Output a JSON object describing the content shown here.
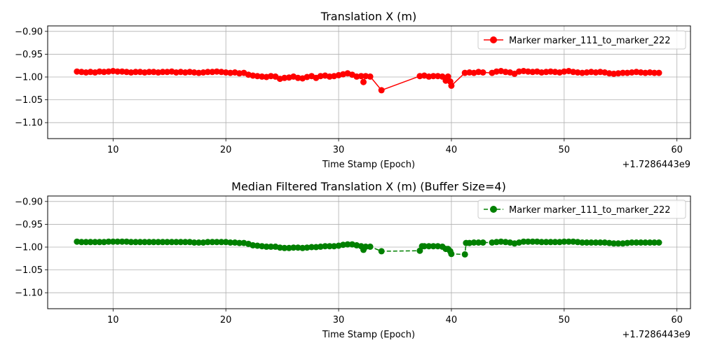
{
  "chart_data": [
    {
      "type": "line",
      "title": "Translation X (m)",
      "xlabel": "Time Stamp (Epoch)",
      "ylabel": "",
      "x_offset_label": "+1.7286443e9",
      "xlim": [
        4.2,
        61.2
      ],
      "ylim": [
        -1.135,
        -0.888
      ],
      "x_ticks": [
        10,
        20,
        30,
        40,
        50,
        60
      ],
      "x_tick_labels": [
        "10",
        "20",
        "30",
        "40",
        "50",
        "60"
      ],
      "y_ticks": [
        -0.9,
        -0.95,
        -1.0,
        -1.05,
        -1.1
      ],
      "y_tick_labels": [
        "−0.90",
        "−0.95",
        "−1.00",
        "−1.05",
        "−1.10"
      ],
      "grid": true,
      "legend_position": "top-right",
      "series": [
        {
          "name": "Marker marker_111_to_marker_222",
          "color": "#ff0000",
          "line_style": "solid",
          "marker": "circle",
          "points": [
            [
              6.8,
              -0.988
            ],
            [
              7.2,
              -0.989
            ],
            [
              7.6,
              -0.99
            ],
            [
              8.0,
              -0.989
            ],
            [
              8.4,
              -0.99
            ],
            [
              8.8,
              -0.988
            ],
            [
              9.2,
              -0.989
            ],
            [
              9.6,
              -0.988
            ],
            [
              10.0,
              -0.987
            ],
            [
              10.4,
              -0.988
            ],
            [
              10.8,
              -0.988
            ],
            [
              11.2,
              -0.989
            ],
            [
              11.6,
              -0.99
            ],
            [
              12.0,
              -0.989
            ],
            [
              12.4,
              -0.989
            ],
            [
              12.8,
              -0.99
            ],
            [
              13.2,
              -0.989
            ],
            [
              13.6,
              -0.989
            ],
            [
              14.0,
              -0.99
            ],
            [
              14.4,
              -0.989
            ],
            [
              14.8,
              -0.989
            ],
            [
              15.2,
              -0.988
            ],
            [
              15.6,
              -0.99
            ],
            [
              16.0,
              -0.989
            ],
            [
              16.4,
              -0.99
            ],
            [
              16.8,
              -0.989
            ],
            [
              17.2,
              -0.99
            ],
            [
              17.6,
              -0.991
            ],
            [
              18.0,
              -0.99
            ],
            [
              18.4,
              -0.989
            ],
            [
              18.8,
              -0.989
            ],
            [
              19.2,
              -0.988
            ],
            [
              19.6,
              -0.989
            ],
            [
              20.0,
              -0.99
            ],
            [
              20.4,
              -0.991
            ],
            [
              20.8,
              -0.99
            ],
            [
              21.2,
              -0.992
            ],
            [
              21.6,
              -0.991
            ],
            [
              22.0,
              -0.995
            ],
            [
              22.4,
              -0.997
            ],
            [
              22.8,
              -0.998
            ],
            [
              23.2,
              -0.999
            ],
            [
              23.6,
              -1.0
            ],
            [
              24.0,
              -0.998
            ],
            [
              24.4,
              -0.999
            ],
            [
              24.8,
              -1.004
            ],
            [
              25.2,
              -1.002
            ],
            [
              25.6,
              -1.001
            ],
            [
              26.0,
              -0.999
            ],
            [
              26.4,
              -1.002
            ],
            [
              26.8,
              -1.003
            ],
            [
              27.2,
              -1.0
            ],
            [
              27.6,
              -0.998
            ],
            [
              28.0,
              -1.002
            ],
            [
              28.4,
              -0.998
            ],
            [
              28.8,
              -0.997
            ],
            [
              29.2,
              -0.999
            ],
            [
              29.6,
              -0.998
            ],
            [
              30.0,
              -0.996
            ],
            [
              30.4,
              -0.994
            ],
            [
              30.8,
              -0.992
            ],
            [
              31.2,
              -0.995
            ],
            [
              31.6,
              -0.999
            ],
            [
              32.0,
              -0.998
            ],
            [
              32.2,
              -1.011
            ],
            [
              32.4,
              -0.998
            ],
            [
              32.8,
              -0.999
            ],
            [
              33.8,
              -1.029
            ],
            [
              37.2,
              -0.998
            ],
            [
              37.6,
              -0.997
            ],
            [
              38.0,
              -0.999
            ],
            [
              38.4,
              -0.998
            ],
            [
              38.8,
              -0.998
            ],
            [
              39.2,
              -0.999
            ],
            [
              39.5,
              -1.008
            ],
            [
              39.7,
              -0.999
            ],
            [
              39.9,
              -1.01
            ],
            [
              40.0,
              -1.019
            ],
            [
              41.2,
              -0.991
            ],
            [
              41.6,
              -0.99
            ],
            [
              42.0,
              -0.991
            ],
            [
              42.4,
              -0.989
            ],
            [
              42.8,
              -0.99
            ],
            [
              43.6,
              -0.991
            ],
            [
              44.0,
              -0.988
            ],
            [
              44.4,
              -0.987
            ],
            [
              44.8,
              -0.989
            ],
            [
              45.2,
              -0.99
            ],
            [
              45.6,
              -0.993
            ],
            [
              46.0,
              -0.988
            ],
            [
              46.4,
              -0.987
            ],
            [
              46.8,
              -0.988
            ],
            [
              47.2,
              -0.989
            ],
            [
              47.6,
              -0.988
            ],
            [
              48.0,
              -0.99
            ],
            [
              48.4,
              -0.989
            ],
            [
              48.8,
              -0.988
            ],
            [
              49.2,
              -0.989
            ],
            [
              49.6,
              -0.99
            ],
            [
              50.0,
              -0.988
            ],
            [
              50.4,
              -0.987
            ],
            [
              50.8,
              -0.989
            ],
            [
              51.2,
              -0.99
            ],
            [
              51.6,
              -0.991
            ],
            [
              52.0,
              -0.99
            ],
            [
              52.4,
              -0.989
            ],
            [
              52.8,
              -0.99
            ],
            [
              53.2,
              -0.989
            ],
            [
              53.6,
              -0.99
            ],
            [
              54.0,
              -0.992
            ],
            [
              54.4,
              -0.993
            ],
            [
              54.8,
              -0.992
            ],
            [
              55.2,
              -0.991
            ],
            [
              55.6,
              -0.991
            ],
            [
              56.0,
              -0.99
            ],
            [
              56.4,
              -0.989
            ],
            [
              56.8,
              -0.99
            ],
            [
              57.2,
              -0.991
            ],
            [
              57.6,
              -0.99
            ],
            [
              58.0,
              -0.991
            ],
            [
              58.4,
              -0.991
            ]
          ]
        }
      ]
    },
    {
      "type": "line",
      "title": "Median Filtered Translation X (m) (Buffer Size=4)",
      "xlabel": "Time Stamp (Epoch)",
      "ylabel": "",
      "x_offset_label": "+1.7286443e9",
      "xlim": [
        4.2,
        61.2
      ],
      "ylim": [
        -1.135,
        -0.888
      ],
      "x_ticks": [
        10,
        20,
        30,
        40,
        50,
        60
      ],
      "x_tick_labels": [
        "10",
        "20",
        "30",
        "40",
        "50",
        "60"
      ],
      "y_ticks": [
        -0.9,
        -0.95,
        -1.0,
        -1.05,
        -1.1
      ],
      "y_tick_labels": [
        "−0.90",
        "−0.95",
        "−1.00",
        "−1.05",
        "−1.10"
      ],
      "grid": true,
      "legend_position": "top-right",
      "series": [
        {
          "name": "Marker marker_111_to_marker_222",
          "color": "#008000",
          "line_style": "dashed",
          "marker": "circle",
          "points": [
            [
              6.8,
              -0.988
            ],
            [
              7.2,
              -0.989
            ],
            [
              7.6,
              -0.989
            ],
            [
              8.0,
              -0.989
            ],
            [
              8.4,
              -0.989
            ],
            [
              8.8,
              -0.989
            ],
            [
              9.2,
              -0.989
            ],
            [
              9.6,
              -0.988
            ],
            [
              10.0,
              -0.988
            ],
            [
              10.4,
              -0.988
            ],
            [
              10.8,
              -0.988
            ],
            [
              11.2,
              -0.988
            ],
            [
              11.6,
              -0.989
            ],
            [
              12.0,
              -0.989
            ],
            [
              12.4,
              -0.989
            ],
            [
              12.8,
              -0.989
            ],
            [
              13.2,
              -0.989
            ],
            [
              13.6,
              -0.989
            ],
            [
              14.0,
              -0.989
            ],
            [
              14.4,
              -0.989
            ],
            [
              14.8,
              -0.989
            ],
            [
              15.2,
              -0.989
            ],
            [
              15.6,
              -0.989
            ],
            [
              16.0,
              -0.989
            ],
            [
              16.4,
              -0.989
            ],
            [
              16.8,
              -0.989
            ],
            [
              17.2,
              -0.99
            ],
            [
              17.6,
              -0.99
            ],
            [
              18.0,
              -0.99
            ],
            [
              18.4,
              -0.989
            ],
            [
              18.8,
              -0.989
            ],
            [
              19.2,
              -0.989
            ],
            [
              19.6,
              -0.989
            ],
            [
              20.0,
              -0.989
            ],
            [
              20.4,
              -0.99
            ],
            [
              20.8,
              -0.99
            ],
            [
              21.2,
              -0.991
            ],
            [
              21.6,
              -0.991
            ],
            [
              22.0,
              -0.993
            ],
            [
              22.4,
              -0.996
            ],
            [
              22.8,
              -0.997
            ],
            [
              23.2,
              -0.998
            ],
            [
              23.6,
              -0.999
            ],
            [
              24.0,
              -0.999
            ],
            [
              24.4,
              -0.999
            ],
            [
              24.8,
              -1.001
            ],
            [
              25.2,
              -1.002
            ],
            [
              25.6,
              -1.002
            ],
            [
              26.0,
              -1.001
            ],
            [
              26.4,
              -1.001
            ],
            [
              26.8,
              -1.002
            ],
            [
              27.2,
              -1.001
            ],
            [
              27.6,
              -1.0
            ],
            [
              28.0,
              -1.0
            ],
            [
              28.4,
              -0.999
            ],
            [
              28.8,
              -0.998
            ],
            [
              29.2,
              -0.998
            ],
            [
              29.6,
              -0.998
            ],
            [
              30.0,
              -0.997
            ],
            [
              30.4,
              -0.995
            ],
            [
              30.8,
              -0.994
            ],
            [
              31.2,
              -0.994
            ],
            [
              31.6,
              -0.996
            ],
            [
              32.0,
              -0.998
            ],
            [
              32.2,
              -1.006
            ],
            [
              32.4,
              -0.999
            ],
            [
              32.8,
              -0.999
            ],
            [
              33.8,
              -1.009
            ],
            [
              37.2,
              -1.008
            ],
            [
              37.4,
              -0.998
            ],
            [
              37.6,
              -0.998
            ],
            [
              38.0,
              -0.998
            ],
            [
              38.4,
              -0.998
            ],
            [
              38.8,
              -0.998
            ],
            [
              39.2,
              -0.999
            ],
            [
              39.5,
              -1.004
            ],
            [
              39.7,
              -1.004
            ],
            [
              39.9,
              -1.009
            ],
            [
              40.0,
              -1.015
            ],
            [
              41.2,
              -1.016
            ],
            [
              41.3,
              -0.991
            ],
            [
              41.6,
              -0.991
            ],
            [
              42.0,
              -0.99
            ],
            [
              42.4,
              -0.99
            ],
            [
              42.8,
              -0.99
            ],
            [
              43.6,
              -0.99
            ],
            [
              44.0,
              -0.989
            ],
            [
              44.4,
              -0.988
            ],
            [
              44.8,
              -0.989
            ],
            [
              45.2,
              -0.99
            ],
            [
              45.6,
              -0.992
            ],
            [
              46.0,
              -0.99
            ],
            [
              46.4,
              -0.988
            ],
            [
              46.8,
              -0.988
            ],
            [
              47.2,
              -0.988
            ],
            [
              47.6,
              -0.988
            ],
            [
              48.0,
              -0.989
            ],
            [
              48.4,
              -0.989
            ],
            [
              48.8,
              -0.989
            ],
            [
              49.2,
              -0.989
            ],
            [
              49.6,
              -0.989
            ],
            [
              50.0,
              -0.988
            ],
            [
              50.4,
              -0.988
            ],
            [
              50.8,
              -0.988
            ],
            [
              51.2,
              -0.989
            ],
            [
              51.6,
              -0.99
            ],
            [
              52.0,
              -0.99
            ],
            [
              52.4,
              -0.99
            ],
            [
              52.8,
              -0.99
            ],
            [
              53.2,
              -0.99
            ],
            [
              53.6,
              -0.99
            ],
            [
              54.0,
              -0.991
            ],
            [
              54.4,
              -0.992
            ],
            [
              54.8,
              -0.992
            ],
            [
              55.2,
              -0.992
            ],
            [
              55.6,
              -0.991
            ],
            [
              56.0,
              -0.99
            ],
            [
              56.4,
              -0.99
            ],
            [
              56.8,
              -0.99
            ],
            [
              57.2,
              -0.99
            ],
            [
              57.6,
              -0.99
            ],
            [
              58.0,
              -0.99
            ],
            [
              58.4,
              -0.99
            ]
          ]
        }
      ]
    }
  ]
}
